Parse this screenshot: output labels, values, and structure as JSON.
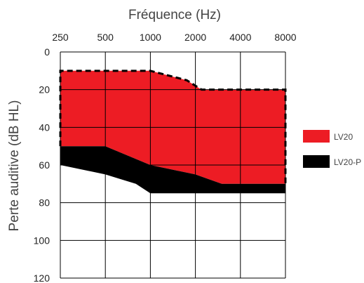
{
  "chart_data": {
    "type": "area",
    "title": "Fréquence (Hz)",
    "xlabel": "Fréquence (Hz)",
    "ylabel": "Perte auditive (dB HL)",
    "x_scale": "log",
    "x_ticks": [
      250,
      500,
      1000,
      2000,
      4000,
      8000
    ],
    "x_tick_labels": [
      "250",
      "500",
      "1000",
      "2000",
      "4000",
      "8000"
    ],
    "y_ticks": [
      0,
      20,
      40,
      60,
      80,
      100,
      120
    ],
    "y_tick_labels": [
      "0",
      "20",
      "40",
      "60",
      "80",
      "100",
      "120"
    ],
    "ylim": [
      0,
      120
    ],
    "y_inverted": true,
    "xlim": [
      250,
      8000
    ],
    "x_axis_position": "top",
    "grid": true,
    "legend_position": "right",
    "series": [
      {
        "name": "LV20",
        "color": "#ed1c24",
        "upper": [
          [
            250,
            10
          ],
          [
            1000,
            10
          ],
          [
            1750,
            15
          ],
          [
            2200,
            20
          ],
          [
            8000,
            20
          ]
        ],
        "lower": [
          [
            250,
            50
          ],
          [
            500,
            50
          ],
          [
            1000,
            60
          ],
          [
            2000,
            65
          ],
          [
            3000,
            70
          ],
          [
            8000,
            70
          ]
        ],
        "boundary_style": "dashed"
      },
      {
        "name": "LV20-P",
        "color": "#000000",
        "upper": [
          [
            250,
            50
          ],
          [
            500,
            50
          ],
          [
            1000,
            60
          ],
          [
            2000,
            65
          ],
          [
            3000,
            70
          ],
          [
            8000,
            70
          ]
        ],
        "lower": [
          [
            250,
            60
          ],
          [
            500,
            65
          ],
          [
            800,
            70
          ],
          [
            1000,
            75
          ],
          [
            8000,
            75
          ]
        ]
      }
    ]
  }
}
